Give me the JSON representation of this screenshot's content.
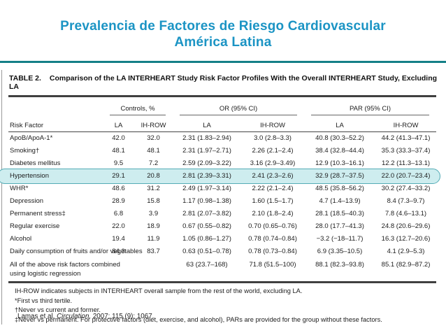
{
  "slide": {
    "title_line1": "Prevalencia de Factores de Riesgo Cardiovascular",
    "title_line2": "América Latina",
    "accent_color": "#1B94C4",
    "rule_color": "#147F87"
  },
  "table": {
    "caption_label": "TABLE 2.",
    "caption_text": "Comparison of the LA INTERHEART Study Risk Factor Profiles With the Overall INTERHEART Study, Excluding LA",
    "group_headers": [
      "Controls, %",
      "OR (95% CI)",
      "PAR (95% CI)"
    ],
    "col_headers": [
      "Risk Factor",
      "LA",
      "IH-ROW",
      "LA",
      "IH-ROW",
      "LA",
      "IH-ROW"
    ],
    "highlight_fill": "#CEEDEF",
    "highlight_border": "#54ACB6",
    "rows": [
      {
        "cells": [
          "ApoB/ApoA-1*",
          "42.0",
          "32.0",
          "2.31 (1.83–2.94)",
          "3.0 (2.8–3.3)",
          "40.8 (30.3–52.2)",
          "44.2 (41.3–47.1)"
        ]
      },
      {
        "cells": [
          "Smoking†",
          "48.1",
          "48.1",
          "2.31 (1.97–2.71)",
          "2.26 (2.1–2.4)",
          "38.4 (32.8–44.4)",
          "35.3 (33.3–37.4)"
        ]
      },
      {
        "cells": [
          "Diabetes mellitus",
          "9.5",
          "7.2",
          "2.59 (2.09–3.22)",
          "3.16 (2.9–3.49)",
          "12.9 (10.3–16.1)",
          "12.2 (11.3–13.1)"
        ]
      },
      {
        "cells": [
          "Hypertension",
          "29.1",
          "20.8",
          "2.81 (2.39–3.31)",
          "2.41 (2.3–2.6)",
          "32.9 (28.7–37.5)",
          "22.0 (20.7–23.4)"
        ],
        "highlighted": true
      },
      {
        "cells": [
          "WHR*",
          "48.6",
          "31.2",
          "2.49 (1.97–3.14)",
          "2.22 (2.1–2.4)",
          "48.5 (35.8–56.2)",
          "30.2 (27.4–33.2)"
        ]
      },
      {
        "cells": [
          "Depression",
          "28.9",
          "15.8",
          "1.17 (0.98–1.38)",
          "1.60 (1.5–1.7)",
          "4.7 (1.4–13.9)",
          "8.4 (7.3–9.7)"
        ]
      },
      {
        "cells": [
          "Permanent stress‡",
          "6.8",
          "3.9",
          "2.81 (2.07–3.82)",
          "2.10 (1.8–2.4)",
          "28.1 (18.5–40.3)",
          "7.8 (4.6–13.1)"
        ]
      },
      {
        "cells": [
          "Regular exercise",
          "22.0",
          "18.9",
          "0.67 (0.55–0.82)",
          "0.70 (0.65–0.76)",
          "28.0 (17.7–41.3)",
          "24.8 (20.6–29.6)"
        ]
      },
      {
        "cells": [
          "Alcohol",
          "19.4",
          "11.9",
          "1.05 (0.86–1.27)",
          "0.78 (0.74–0.84)",
          "−3.2 (−18–11.7)",
          "16.3 (12.7–20.6)"
        ]
      },
      {
        "cells": [
          "Daily consumption of fruits and/or vegetables",
          "84.3",
          "83.7",
          "0.63 (0.51–0.78)",
          "0.78 (0.73–0.84)",
          "6.9 (3.35–10.5)",
          "4.1 (2.9–5.3)"
        ]
      },
      {
        "cells": [
          "All of the above risk factors combined\nusing logistic regression",
          "",
          "",
          "63 (23.7–168)",
          "71.8 (51.5–100)",
          "88.1 (82.3–93.8)",
          "85.1 (82.9–87.2)"
        ]
      }
    ],
    "footnotes": [
      "IH-ROW indicates subjects in INTERHEART overall sample from the rest of the world, excluding LA.",
      "*First vs third tertile.",
      "†Never vs current and former.",
      "‡Never vs permanent. For protective factors (diet, exercise, and alcohol), PARs are provided for the group without these factors."
    ]
  },
  "citation": {
    "authors": "Lamas et al.",
    "journal": "Circulation.",
    "ref": "2007; 115 (9): 1067."
  }
}
